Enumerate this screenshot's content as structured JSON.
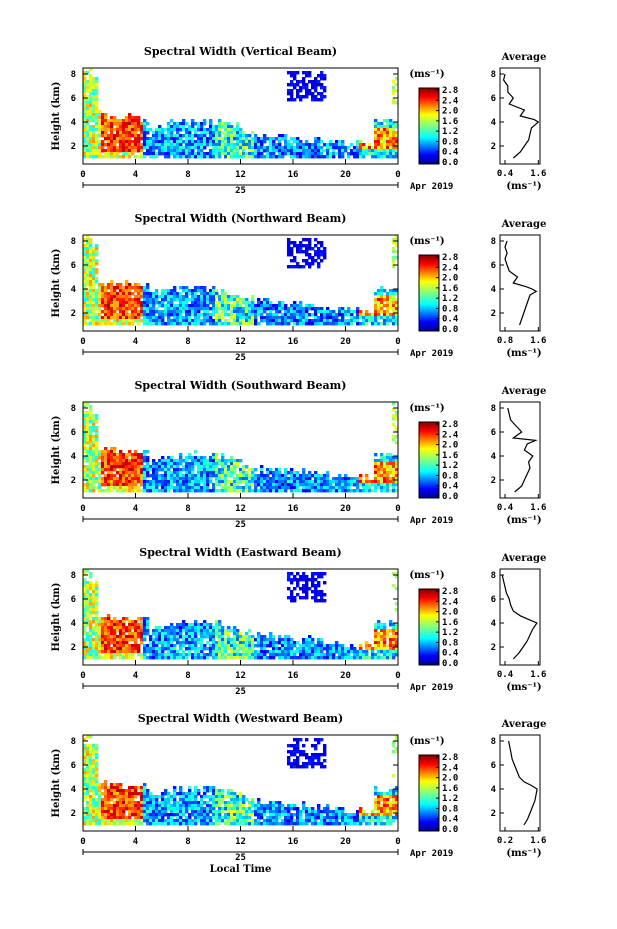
{
  "chart_data": [
    {
      "type": "heatmap",
      "title": "Spectral Width (Vertical Beam)",
      "ylabel": "Height (km)",
      "yticks": [
        "2",
        "4",
        "6",
        "8"
      ],
      "xticks": [
        "0",
        "4",
        "8",
        "12",
        "16",
        "20",
        "0"
      ],
      "date_day": "25",
      "date_label": "Apr 2019",
      "colorbar": {
        "unit": "(ms⁻¹)",
        "ticks": [
          "0.0",
          "0.4",
          "0.8",
          "1.2",
          "1.6",
          "2.0",
          "2.4",
          "2.8"
        ]
      },
      "profile": {
        "title": "Average",
        "xlabel": "(ms⁻¹)",
        "xticks": [
          "0.4",
          "1.6"
        ],
        "yticks": [
          "2",
          "4",
          "6",
          "8"
        ],
        "heights": [
          1.0,
          1.5,
          2.0,
          2.5,
          3.0,
          3.5,
          3.8,
          4.0,
          4.2,
          4.5,
          5.0,
          5.5,
          6.0,
          6.5,
          7.0,
          7.5,
          8.0
        ],
        "values": [
          0.7,
          0.95,
          1.1,
          1.25,
          1.3,
          1.35,
          1.5,
          1.6,
          1.45,
          0.95,
          1.1,
          0.55,
          0.7,
          0.5,
          0.5,
          0.35,
          0.4
        ]
      }
    },
    {
      "type": "heatmap",
      "title": "Spectral Width (Northward Beam)",
      "ylabel": "Height (km)",
      "yticks": [
        "2",
        "4",
        "6",
        "8"
      ],
      "xticks": [
        "0",
        "4",
        "8",
        "12",
        "16",
        "20",
        "0"
      ],
      "date_day": "25",
      "date_label": "Apr 2019",
      "colorbar": {
        "unit": "(ms⁻¹)",
        "ticks": [
          "0.0",
          "0.4",
          "0.8",
          "1.2",
          "1.6",
          "2.0",
          "2.4",
          "2.8"
        ]
      },
      "profile": {
        "title": "Average",
        "xlabel": "(ms⁻¹)",
        "xticks": [
          "0.8",
          "1.6"
        ],
        "yticks": [
          "2",
          "4",
          "6",
          "8"
        ],
        "heights": [
          1.0,
          1.5,
          2.0,
          2.5,
          3.0,
          3.5,
          3.8,
          4.0,
          4.2,
          4.5,
          5.0,
          5.5,
          6.0,
          6.5,
          7.0,
          7.5,
          8.0
        ],
        "values": [
          1.15,
          1.2,
          1.25,
          1.3,
          1.35,
          1.4,
          1.55,
          1.45,
          1.3,
          1.0,
          1.1,
          0.9,
          0.85,
          0.8,
          0.85,
          0.8,
          0.85
        ]
      }
    },
    {
      "type": "heatmap",
      "title": "Spectral Width (Southward Beam)",
      "ylabel": "Height (km)",
      "yticks": [
        "2",
        "4",
        "6",
        "8"
      ],
      "xticks": [
        "0",
        "4",
        "8",
        "12",
        "16",
        "20",
        "0"
      ],
      "date_day": "25",
      "date_label": "Apr 2019",
      "colorbar": {
        "unit": "(ms⁻¹)",
        "ticks": [
          "0.0",
          "0.4",
          "0.8",
          "1.2",
          "1.6",
          "2.0",
          "2.4",
          "2.8"
        ]
      },
      "profile": {
        "title": "Average",
        "xlabel": "(ms⁻¹)",
        "xticks": [
          "0.4",
          "1.6"
        ],
        "yticks": [
          "2",
          "4",
          "6",
          "8"
        ],
        "heights": [
          1.0,
          1.5,
          2.0,
          2.5,
          3.0,
          3.5,
          4.0,
          4.5,
          5.0,
          5.3,
          5.5,
          6.0,
          6.5,
          7.0,
          7.5,
          8.0
        ],
        "values": [
          0.75,
          1.0,
          1.1,
          1.2,
          1.3,
          1.25,
          1.4,
          1.1,
          1.2,
          1.5,
          0.7,
          1.0,
          0.8,
          0.6,
          0.55,
          0.5
        ]
      }
    },
    {
      "type": "heatmap",
      "title": "Spectral Width (Eastward Beam)",
      "ylabel": "Height (km)",
      "yticks": [
        "2",
        "4",
        "6",
        "8"
      ],
      "xticks": [
        "0",
        "4",
        "8",
        "12",
        "16",
        "20",
        "0"
      ],
      "date_day": "25",
      "date_label": "Apr 2019",
      "colorbar": {
        "unit": "(ms⁻¹)",
        "ticks": [
          "0.0",
          "0.4",
          "0.8",
          "1.2",
          "1.6",
          "2.0",
          "2.4",
          "2.8"
        ]
      },
      "profile": {
        "title": "Average",
        "xlabel": "(ms⁻¹)",
        "xticks": [
          "0.4",
          "1.6"
        ],
        "yticks": [
          "2",
          "4",
          "6",
          "8"
        ],
        "heights": [
          1.0,
          1.5,
          2.0,
          2.5,
          3.0,
          3.5,
          4.0,
          4.3,
          4.6,
          5.0,
          5.5,
          6.0,
          6.5,
          7.0,
          7.5,
          8.0
        ],
        "values": [
          0.7,
          0.9,
          1.05,
          1.2,
          1.3,
          1.4,
          1.55,
          1.25,
          0.95,
          0.7,
          0.6,
          0.55,
          0.45,
          0.4,
          0.35,
          0.3
        ]
      }
    },
    {
      "type": "heatmap",
      "title": "Spectral Width (Westward Beam)",
      "ylabel": "Height (km)",
      "yticks": [
        "2",
        "4",
        "6",
        "8"
      ],
      "xticks": [
        "0",
        "4",
        "8",
        "12",
        "16",
        "20",
        "0"
      ],
      "date_day": "25",
      "date_label": "Apr 2019",
      "xlabel": "Local Time",
      "colorbar": {
        "unit": "(ms⁻¹)",
        "ticks": [
          "0.0",
          "0.4",
          "0.8",
          "1.2",
          "1.6",
          "2.0",
          "2.4",
          "2.8"
        ]
      },
      "profile": {
        "title": "Average",
        "xlabel": "(ms⁻¹)",
        "xticks": [
          "0.2",
          "1.6"
        ],
        "yticks": [
          "2",
          "4",
          "6",
          "8"
        ],
        "heights": [
          1.0,
          1.5,
          2.0,
          2.5,
          3.0,
          3.5,
          4.0,
          4.3,
          4.6,
          5.0,
          5.5,
          6.0,
          6.5,
          7.0,
          7.5,
          8.0
        ],
        "values": [
          1.0,
          1.15,
          1.25,
          1.35,
          1.45,
          1.5,
          1.55,
          1.3,
          1.0,
          0.8,
          0.7,
          0.6,
          0.5,
          0.45,
          0.4,
          0.35
        ]
      }
    }
  ]
}
